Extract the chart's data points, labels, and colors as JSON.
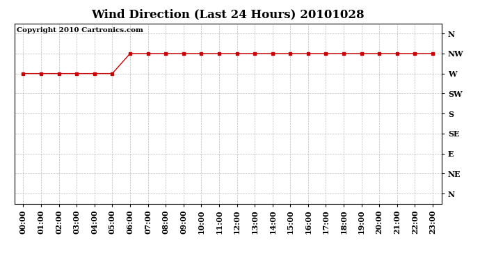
{
  "title": "Wind Direction (Last 24 Hours) 20101028",
  "copyright": "Copyright 2010 Cartronics.com",
  "x_labels": [
    "00:00",
    "01:00",
    "02:00",
    "03:00",
    "04:00",
    "05:00",
    "06:00",
    "07:00",
    "08:00",
    "09:00",
    "10:00",
    "11:00",
    "12:00",
    "13:00",
    "14:00",
    "15:00",
    "16:00",
    "17:00",
    "18:00",
    "19:00",
    "20:00",
    "21:00",
    "22:00",
    "23:00"
  ],
  "y_labels_top_to_bottom": [
    "N",
    "NW",
    "W",
    "SW",
    "S",
    "SE",
    "E",
    "NE",
    "N"
  ],
  "data_y": [
    2,
    2,
    2,
    2,
    2,
    2,
    1,
    1,
    1,
    1,
    1,
    1,
    1,
    1,
    1,
    1,
    1,
    1,
    1,
    1,
    1,
    1,
    1,
    1
  ],
  "line_color": "#cc0000",
  "marker": "s",
  "marker_size": 3,
  "bg_color": "#ffffff",
  "grid_color": "#bbbbbb",
  "title_fontsize": 12,
  "axis_fontsize": 8,
  "copyright_fontsize": 7.5
}
